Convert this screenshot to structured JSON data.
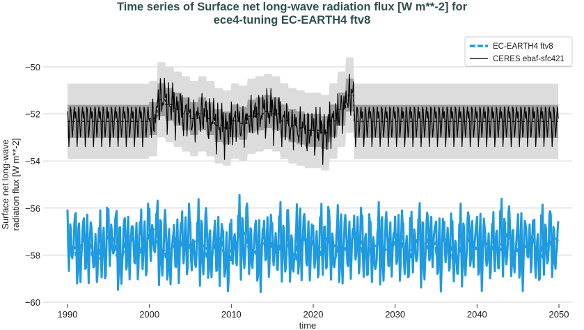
{
  "chart_data": {
    "type": "line",
    "title": "Time series of Surface net long-wave radiation flux [W m**-2] for",
    "title_line2": "ece4-tuning EC-EARTH4 ftv8",
    "xlabel": "time",
    "ylabel_line1": "Surface net long-wave",
    "ylabel_line2": "radiation flux [W m**-2]",
    "xlim": [
      1987,
      2051.5
    ],
    "ylim": [
      -60.2,
      -48.9
    ],
    "xticks": [
      1990,
      2000,
      2010,
      2020,
      2030,
      2040,
      2050
    ],
    "xtick_labels": [
      "1990",
      "2000",
      "2010",
      "2020",
      "2030",
      "2040",
      "2050"
    ],
    "yticks": [
      -50,
      -52,
      -54,
      -56,
      -58,
      -60
    ],
    "ytick_labels": [
      "−50",
      "−52",
      "−54",
      "−56",
      "−58",
      "−60"
    ],
    "grid": true,
    "legend_position": "top-right",
    "series": [
      {
        "name": "EC-EARTH4 ftv8",
        "color": "#1f9ae0",
        "style": "dashed running mean, thick monthly line",
        "years": [
          1990,
          2049
        ],
        "seasonal_cycle": [
          -56.2,
          -57.6,
          -58.6,
          -58.1,
          -56.9,
          -56.6,
          -57.9,
          -58.7,
          -58.2,
          -57.4,
          -56.4,
          -56.5
        ],
        "annual_means": [
          -57.4,
          -57.7,
          -57.5,
          -57.9,
          -57.6,
          -57.3,
          -57.8,
          -57.5,
          -57.6,
          -57.4,
          -57.2,
          -57.5,
          -57.9,
          -57.6,
          -57.3,
          -57.7,
          -57.5,
          -57.8,
          -57.6,
          -58.0,
          -57.5,
          -57.3,
          -57.6,
          -57.8,
          -57.4,
          -57.6,
          -57.5,
          -57.9,
          -57.3,
          -57.6,
          -57.7,
          -57.4,
          -57.8,
          -57.5,
          -57.6,
          -57.3,
          -57.7,
          -57.9,
          -57.5,
          -57.6,
          -57.4,
          -57.8,
          -57.5,
          -57.6,
          -57.3,
          -57.7,
          -57.5,
          -57.9,
          -57.6,
          -57.4,
          -57.6,
          -57.8,
          -57.5,
          -57.3,
          -57.7,
          -57.6,
          -57.5,
          -57.8,
          -57.4,
          -57.6
        ]
      },
      {
        "name": "CERES ebaf-sfc421",
        "color": "#000000",
        "style": "thin monthly line, dashed running mean, grey spread bands",
        "climatology_years": [
          1990,
          2049
        ],
        "climatology": [
          -51.9,
          -52.3,
          -53.4,
          -52.8,
          -51.7,
          -51.8,
          -52.4,
          -53.0,
          -52.6,
          -52.0,
          -51.7,
          -52.2
        ],
        "observed_years": [
          2000,
          2024
        ],
        "observed_annual_means": [
          -52.2,
          -51.4,
          -51.6,
          -51.8,
          -52.0,
          -52.2,
          -52.0,
          -52.2,
          -52.5,
          -52.6,
          -52.3,
          -52.4,
          -52.1,
          -52.0,
          -51.9,
          -52.0,
          -52.3,
          -52.5,
          -52.6,
          -52.7,
          -52.7,
          -52.8,
          -52.3,
          -51.8,
          -51.2
        ],
        "band_inner_halfwidth": 0.7,
        "band_outer_halfwidth": 1.6,
        "band_inner_color": "#9e9e9e",
        "band_outer_color": "#dcdcdc"
      }
    ]
  }
}
